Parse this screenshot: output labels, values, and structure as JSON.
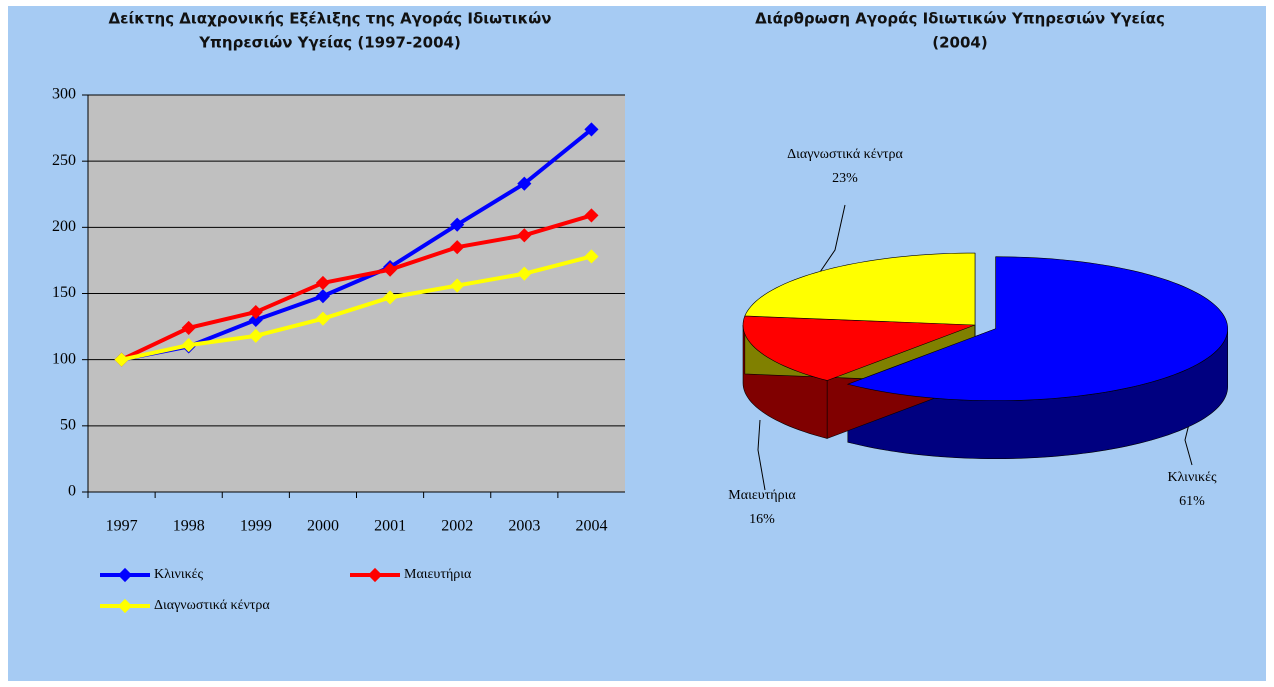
{
  "chart_data": [
    {
      "type": "line",
      "title": [
        "Δείκτης Διαχρονικής Εξέλιξης της Αγοράς Ιδιωτικών",
        "Υπηρεσιών Υγείας (1997-2004)"
      ],
      "categories": [
        "1997",
        "1998",
        "1999",
        "2000",
        "2001",
        "2002",
        "2003",
        "2004"
      ],
      "series": [
        {
          "name": "Κλινικές",
          "color": "#0000ff",
          "values": [
            100,
            110,
            130,
            148,
            170,
            202,
            233,
            274
          ]
        },
        {
          "name": "Μαιευτήρια",
          "color": "#ff0000",
          "values": [
            100,
            124,
            136,
            158,
            168,
            185,
            194,
            209
          ]
        },
        {
          "name": "Διαγνωστικά κέντρα",
          "color": "#ffff00",
          "values": [
            100,
            111,
            118,
            131,
            147,
            156,
            165,
            178
          ]
        }
      ],
      "ylim": [
        0,
        300
      ],
      "yticks": [
        0,
        50,
        100,
        150,
        200,
        250,
        300
      ],
      "grid": true
    },
    {
      "type": "pie",
      "title": [
        "Διάρθρωση Αγοράς Ιδιωτικών Υπηρεσιών Υγείας",
        "(2004)"
      ],
      "categories": [
        "Κλινικές",
        "Μαιευτήρια",
        "Διαγνωστικά κέντρα"
      ],
      "values": [
        61,
        16,
        23
      ],
      "value_labels": [
        "61%",
        "16%",
        "23%"
      ],
      "colors": [
        "#0000ff",
        "#ff0000",
        "#ffff00"
      ]
    }
  ]
}
